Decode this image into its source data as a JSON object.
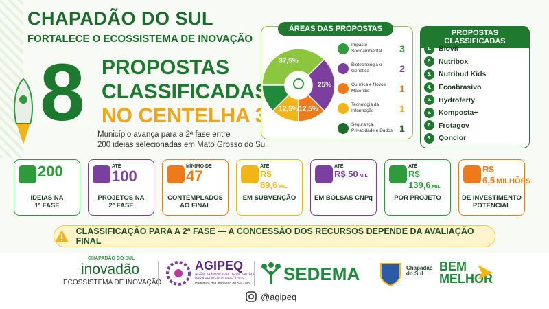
{
  "header": {
    "title": "CHAPADÃO DO SUL",
    "subtitle": "FORTALECE O ECOSSISTEMA DE INOVAÇÃO"
  },
  "hero": {
    "number": "8",
    "line1": "PROPOSTAS",
    "line2": "CLASSIFICADAS",
    "line3": "NO CENTELHA 3",
    "description": [
      "Município avança para a 2ª fase entre",
      "200 ideias selecionadas em Mato Grosso do Sul"
    ]
  },
  "areas": {
    "title": "ÁREAS DAS PROPOSTAS",
    "items": [
      {
        "label": "Impacto Socioambiental",
        "count": "3",
        "color": "#2e9c3a"
      },
      {
        "label": "Biotecnologia e Genética",
        "count": "2",
        "color": "#7b3fa0"
      },
      {
        "label": "Química e Novos Materiais",
        "count": "1",
        "color": "#ef7a1a"
      },
      {
        "label": "Tecnologia da Informação",
        "count": "1",
        "color": "#f2b517"
      },
      {
        "label": "Segurança, Privacidade e Dados",
        "count": "1",
        "color": "#1f6b2c"
      }
    ]
  },
  "chart_data": {
    "type": "pie",
    "values": [
      37.5,
      25,
      12.5,
      12.5,
      12.5
    ],
    "value_labels": [
      "37,5%",
      "25%",
      "12,5%",
      "12,5%",
      null
    ],
    "colors": [
      "#8cc63f",
      "#7b3fa0",
      "#ef7a1a",
      "#f2b517",
      "#1f8a3a"
    ]
  },
  "ranking": {
    "title": "PROPOSTAS CLASSIFICADAS",
    "items": [
      {
        "rank": "1.",
        "name": "Biovit"
      },
      {
        "rank": "2.",
        "name": "Nutribox"
      },
      {
        "rank": "3.",
        "name": "Nutribud Kids"
      },
      {
        "rank": "4.",
        "name": "Ecoabrasivo"
      },
      {
        "rank": "5.",
        "name": "Hydroferty"
      },
      {
        "rank": "6.",
        "name": "Komposta+"
      },
      {
        "rank": "7.",
        "name": "Frotagov"
      },
      {
        "rank": "8.",
        "name": "Qonclor"
      }
    ]
  },
  "stats": [
    {
      "prefix": null,
      "value": "200",
      "suffix": null,
      "bottom": [
        "IDEIAS NA",
        "1ª FASE"
      ],
      "color": "#2e9c3a"
    },
    {
      "prefix": "ATÉ",
      "value": "100",
      "suffix": null,
      "bottom": [
        "PROJETOS NA",
        "2ª FASE"
      ],
      "color": "#7b3fa0"
    },
    {
      "prefix": "MÍNIMO DE",
      "value": "47",
      "suffix": null,
      "bottom": [
        "CONTEMPLADOS",
        "AO FINAL"
      ],
      "color": "#ef7a1a"
    },
    {
      "prefix": "ATÉ",
      "value": "R$ 89,6",
      "suffix": "MIL",
      "bottom": [
        "EM SUBVENÇÃO"
      ],
      "color": "#f2b517"
    },
    {
      "prefix": "ATÉ",
      "value": "R$ 50",
      "suffix": "MIL",
      "bottom": [
        "EM BOLSAS CNPq"
      ],
      "color": "#7b3fa0"
    },
    {
      "prefix": "ATÉ",
      "value": "R$ 139,6",
      "suffix": "MIL",
      "bottom": [
        "POR PROJETO"
      ],
      "color": "#2e9c3a"
    },
    {
      "prefix": null,
      "value": "R$ 6,5",
      "suffix": "MILHÕES",
      "bottom": [
        "DE INVESTIMENTO",
        "POTENCIAL"
      ],
      "color": "#ef7a1a"
    }
  ],
  "banner": "CLASSIFICAÇÃO PARA A 2ª FASE — A CONCESSÃO DOS RECURSOS DEPENDE DA AVALIAÇÃO FINAL",
  "logos": {
    "inovadao": {
      "top": "CHAPADÃO DO SUL",
      "name": "inovadão",
      "tagline": "ECOSSISTEMA DE INOVAÇÃO"
    },
    "agipeq": {
      "name": "AGIPEQ",
      "line1": "AGÊNCIA MUNICIPAL DE INOVAÇÃO",
      "line2": "PARA PEQUENOS NEGÓCIOS",
      "line3": "Prefeitura de Chapadão do Sul - MS"
    },
    "sedema": "SEDEMA",
    "prefeitura": {
      "left": "Chapadão do Sul",
      "bem": "BEM",
      "melhor": "MELHOR"
    }
  },
  "social": "@agipeq"
}
